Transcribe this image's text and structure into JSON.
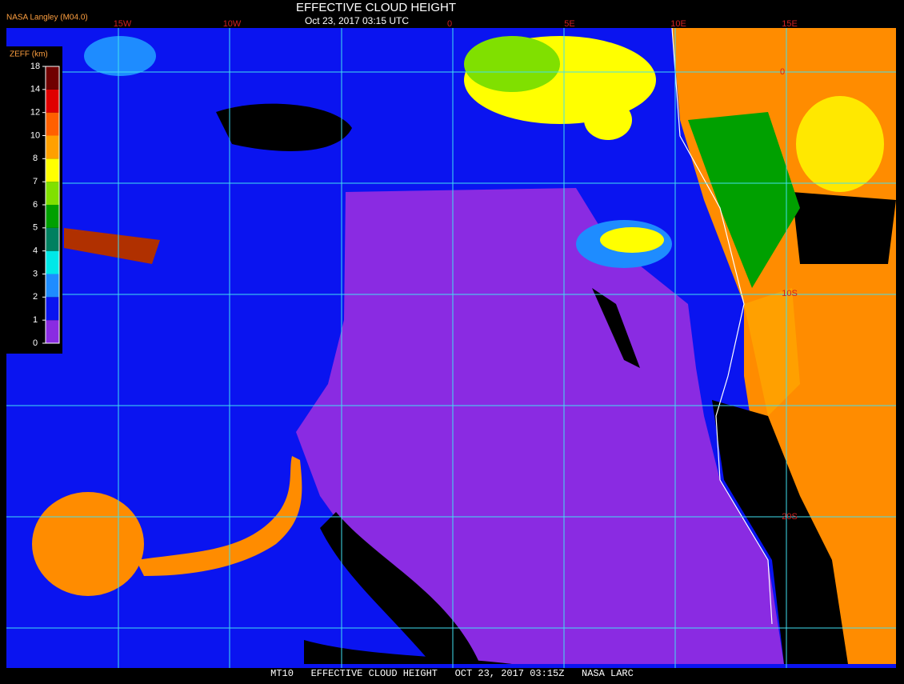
{
  "header": {
    "title": "EFFECTIVE CLOUD HEIGHT",
    "subtitle": "Oct 23, 2017 03:15 UTC",
    "source": "NASA Langley (M04.0)"
  },
  "colorbar": {
    "label": "ZEFF (km)",
    "ticks": [
      0,
      1,
      2,
      3,
      4,
      5,
      6,
      7,
      8,
      10,
      12,
      14,
      18
    ],
    "colors": [
      "#8a2be2",
      "#0a14f0",
      "#1e8cff",
      "#00e8e8",
      "#008060",
      "#00a000",
      "#80e000",
      "#ffff00",
      "#ffa000",
      "#ff6000",
      "#e00000",
      "#700000"
    ]
  },
  "longitude_labels": [
    "15W",
    "10W",
    "0",
    "5E",
    "10E",
    "15E"
  ],
  "latitude_labels": [
    "0",
    "10S",
    "20S"
  ],
  "footer": "MT10   EFFECTIVE CLOUD HEIGHT   OCT 23, 2017 03:15Z   NASA LARC"
}
